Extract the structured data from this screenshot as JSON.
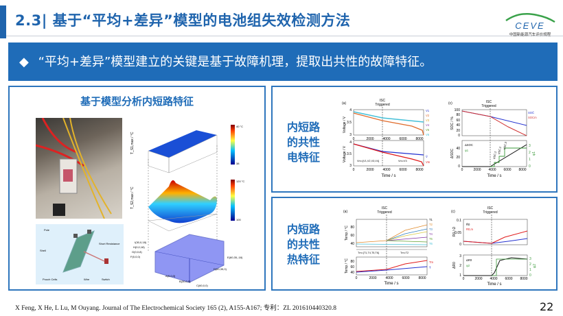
{
  "header": {
    "title": "2.3| 基于“平均+差异”模型的电池组失效检测方法",
    "logo": {
      "brand": "CEVE",
      "subtitle": "中国新能源汽车评价规程"
    }
  },
  "banner": {
    "bullet": "◆",
    "text": "“平均+差异”模型建立的关键是基于故障机理，提取出共性的故障特征。"
  },
  "left_panel": {
    "title": "基于模型分析内短路特征",
    "photo_alt": "battery test setup photo",
    "schematic_labels": [
      "Pole",
      "Shell",
      "Short Resistance",
      "Pouch Cells",
      "Wire",
      "Switch"
    ],
    "surface_top": {
      "zlabel": "T_S1,max / °C",
      "colorbar": [
        "40 °C",
        "39.5",
        "39",
        "38.5",
        "38"
      ]
    },
    "surface_mid": {
      "zlabel": "T_S2,max / °C",
      "colorbar": [
        "120 °C",
        "115",
        "110",
        "105",
        "100"
      ]
    },
    "points": [
      "I(30,0,18)",
      "H(0,0,18)",
      "G(0,0,8)",
      "F(0,0,0)",
      "A(0,0,0)",
      "B(30,0,0)",
      "C(60,0,0)",
      "D(60,35,0)",
      "E(60,35,-18)"
    ]
  },
  "electric": {
    "label": [
      "内短路",
      "的共性",
      "电特征"
    ],
    "a": {
      "tag": "(a)",
      "isc": [
        "ISC",
        "Triggered"
      ],
      "ylabel": "Voltage / V",
      "yticks": [
        "3",
        "3.5",
        "4"
      ],
      "xticks": [
        "0",
        "2000",
        "4000",
        "6000",
        "8000"
      ],
      "xlabel": "Time / s",
      "legend_top": [
        "V1",
        "V2",
        "V3",
        "V4",
        "V5",
        "V6"
      ],
      "legend_bottom": [
        "V̄",
        "Vm"
      ],
      "ann_left": "Vm={V1,V2,V3,V4}",
      "ann_right": "Vm=V3"
    },
    "c": {
      "tag": "(c)",
      "isc": [
        "ISC",
        "Triggered"
      ],
      "ylabel_top": "SOC / %",
      "yticks_top": [
        "0",
        "20",
        "40",
        "60",
        "80",
        "100"
      ],
      "ylabel_bottom": "ΔSOC",
      "yticks_bottom": [
        "0",
        "20",
        "40"
      ],
      "yticks_right": [
        "0",
        "1",
        "2",
        "3"
      ],
      "ylabel_right": "φ1",
      "xticks": [
        "0",
        "2000",
        "4000",
        "6000",
        "8000"
      ],
      "xlabel": "Time / s",
      "legend_top": [
        "SOC̄",
        "SOCm"
      ],
      "legend_bottom": [
        "ΔSOC",
        "φ1"
      ],
      "marks": [
        "tISC,1",
        "tISC,2",
        "tISC,3"
      ]
    }
  },
  "thermal": {
    "label": [
      "内短路",
      "的共性",
      "热特征"
    ],
    "a": {
      "tag": "(a)",
      "isc": [
        "ISC",
        "Triggered"
      ],
      "ylabel": "Temp / °C",
      "yticks": [
        "40",
        "60",
        "80"
      ],
      "xticks": [
        "0",
        "2000",
        "4000",
        "6000",
        "8000"
      ],
      "xlabel": "Time / s",
      "legend_top": [
        "T1",
        "T2",
        "T3",
        "T4",
        "T5",
        "T6"
      ],
      "legend_bottom": [
        "Tm",
        "T̄"
      ],
      "ann_left": "Tm={T1,T4,T5,T6}",
      "ann_right": "Tm=T2"
    },
    "c": {
      "tag": "(c)",
      "isc": [
        "ISC",
        "Triggered"
      ],
      "ylabel_top": "R0 / Ω",
      "yticks_top": [
        "0",
        "0.05",
        "0.1"
      ],
      "ylabel_bottom": "ΔR0",
      "yticks_bottom": [
        "1",
        "2",
        "3"
      ],
      "yticks_right": [
        "0",
        "1",
        "2",
        "3"
      ],
      "ylabel_right": "φ2",
      "xticks": [
        "0",
        "2000",
        "4000",
        "6000",
        "8000"
      ],
      "xlabel": "Time / s",
      "legend_top": [
        "R̄0",
        "R0,m"
      ],
      "legend_bottom": [
        "ΔR0",
        "φ2"
      ]
    }
  },
  "colors": {
    "accent": "#1f6cb8",
    "border": "#2d75bd",
    "title": "#1f64ad"
  },
  "footer": {
    "citation": "X Feng, X He, L Lu, M Ouyang. Journal of The Electrochemical Society 165 (2), A155-A167; 专利：ZL 201610440320.8",
    "page": "22"
  }
}
